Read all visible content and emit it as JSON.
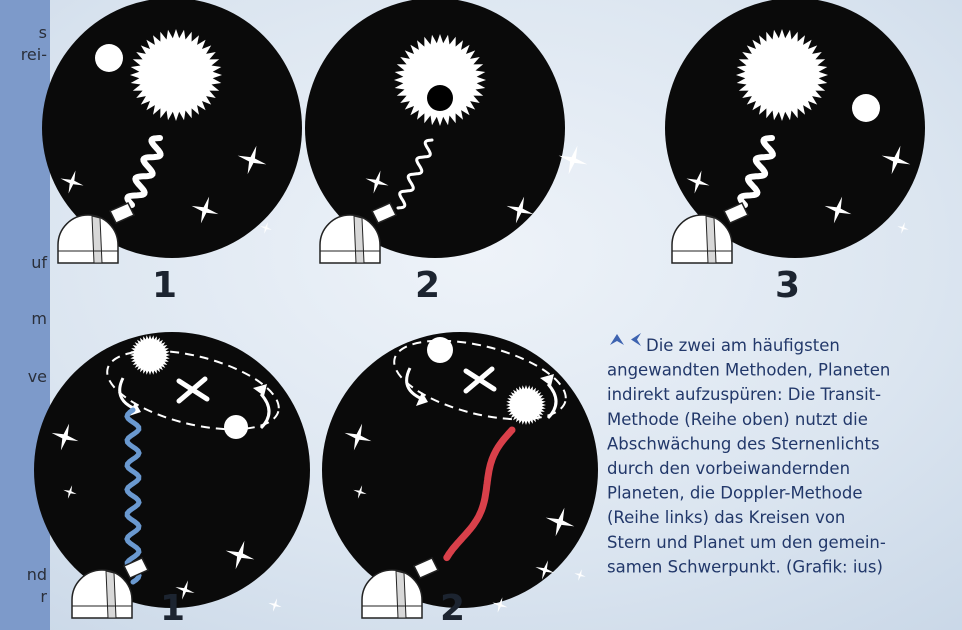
{
  "sidebar": {
    "fragments": [
      "s",
      "rei-",
      "uf",
      "m",
      "ve",
      "nd",
      "r"
    ]
  },
  "panels": [
    {
      "label": "1"
    },
    {
      "label": "2"
    },
    {
      "label": "3"
    },
    {
      "label": "1"
    },
    {
      "label": "2"
    }
  ],
  "caption": {
    "lines": [
      "Die zwei am häufigsten",
      "angewandten Methoden, Planeten",
      "indirekt aufzuspüren: Die Transit-",
      "Methode (Reihe oben) nutzt die",
      "Abschwächung des Sternenlichts",
      "durch den vorbeiwandernden",
      "Planeten, die Doppler-Methode",
      "(Reihe links) das Kreisen von",
      "Stern und Planet um den gemein-",
      "samen Schwerpunkt. (Grafik: ius)"
    ]
  }
}
